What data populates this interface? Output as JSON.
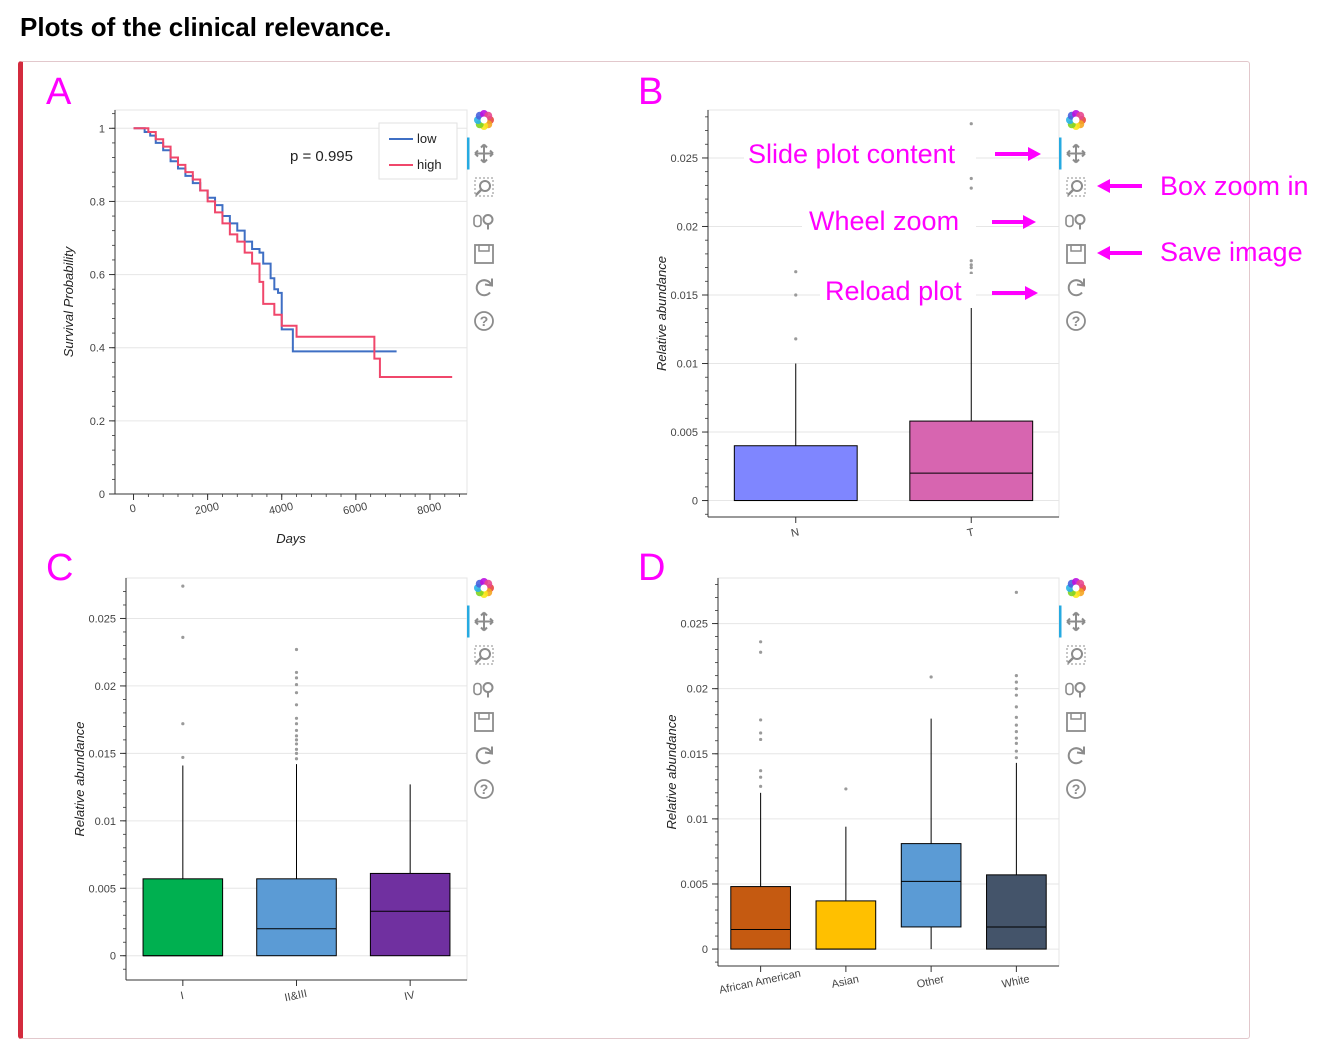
{
  "page": {
    "title": "Plots of the clinical relevance."
  },
  "toolbar": {
    "tools": [
      {
        "name": "bokeh-logo-icon",
        "active": false
      },
      {
        "name": "pan-icon",
        "active": true
      },
      {
        "name": "box-zoom-icon",
        "active": false
      },
      {
        "name": "wheel-zoom-icon",
        "active": false
      },
      {
        "name": "save-icon",
        "active": false
      },
      {
        "name": "reset-icon",
        "active": false
      },
      {
        "name": "help-icon",
        "active": false
      }
    ],
    "accent": "#26aae1"
  },
  "annotations": {
    "slide": "Slide plot content",
    "box_zoom": "Box zoom in",
    "wheel_zoom": "Wheel zoom",
    "save": "Save image",
    "reload": "Reload plot",
    "color": "#ff00ff"
  },
  "chart_data": [
    {
      "panel": "A",
      "type": "line",
      "xlabel": "Days",
      "ylabel": "Survival Probability",
      "xlim": [
        -500,
        9000
      ],
      "ylim": [
        0,
        1.05
      ],
      "xticks": [
        0,
        2000,
        4000,
        6000,
        8000
      ],
      "xtick_labels": [
        "0",
        "2000",
        "4000",
        "6000",
        "8000"
      ],
      "yticks": [
        0,
        0.2,
        0.4,
        0.6,
        0.8,
        1
      ],
      "ytick_labels": [
        "0",
        "0.2",
        "0.4",
        "0.6",
        "0.8",
        "1"
      ],
      "annotation": "p = 0.995",
      "legend": "top-right",
      "series": [
        {
          "name": "low",
          "color": "#3f6fc4",
          "points": [
            [
              0,
              1
            ],
            [
              150,
              1
            ],
            [
              300,
              0.99
            ],
            [
              450,
              0.98
            ],
            [
              600,
              0.96
            ],
            [
              800,
              0.94
            ],
            [
              1000,
              0.91
            ],
            [
              1200,
              0.89
            ],
            [
              1400,
              0.87
            ],
            [
              1600,
              0.85
            ],
            [
              1800,
              0.83
            ],
            [
              2000,
              0.81
            ],
            [
              2200,
              0.79
            ],
            [
              2400,
              0.76
            ],
            [
              2600,
              0.74
            ],
            [
              2800,
              0.72
            ],
            [
              3000,
              0.69
            ],
            [
              3200,
              0.67
            ],
            [
              3400,
              0.66
            ],
            [
              3500,
              0.63
            ],
            [
              3650,
              0.63
            ],
            [
              3700,
              0.59
            ],
            [
              3800,
              0.56
            ],
            [
              3900,
              0.55
            ],
            [
              4000,
              0.45
            ],
            [
              4300,
              0.45
            ],
            [
              4300,
              0.39
            ],
            [
              7100,
              0.39
            ]
          ]
        },
        {
          "name": "high",
          "color": "#f0476b",
          "points": [
            [
              0,
              1
            ],
            [
              200,
              1
            ],
            [
              400,
              0.99
            ],
            [
              600,
              0.97
            ],
            [
              800,
              0.95
            ],
            [
              1000,
              0.92
            ],
            [
              1200,
              0.9
            ],
            [
              1400,
              0.88
            ],
            [
              1600,
              0.86
            ],
            [
              1800,
              0.83
            ],
            [
              2000,
              0.8
            ],
            [
              2200,
              0.77
            ],
            [
              2400,
              0.74
            ],
            [
              2600,
              0.71
            ],
            [
              2800,
              0.69
            ],
            [
              3000,
              0.66
            ],
            [
              3200,
              0.63
            ],
            [
              3400,
              0.58
            ],
            [
              3500,
              0.52
            ],
            [
              3800,
              0.52
            ],
            [
              3800,
              0.49
            ],
            [
              3950,
              0.49
            ],
            [
              4000,
              0.46
            ],
            [
              4400,
              0.46
            ],
            [
              4400,
              0.43
            ],
            [
              6500,
              0.43
            ],
            [
              6500,
              0.37
            ],
            [
              6650,
              0.37
            ],
            [
              6650,
              0.32
            ],
            [
              8600,
              0.32
            ]
          ]
        }
      ]
    },
    {
      "panel": "B",
      "type": "box",
      "xlabel": "",
      "ylabel": "Relative abundance",
      "ylim": [
        -0.0012,
        0.0285
      ],
      "yticks": [
        0,
        0.005,
        0.01,
        0.015,
        0.02,
        0.025
      ],
      "ytick_labels": [
        "0",
        "0.005",
        "0.01",
        "0.015",
        "0.02",
        "0.025"
      ],
      "categories": [
        "N",
        "T"
      ],
      "boxes": [
        {
          "q1": 0,
          "median": 0,
          "q3": 0.004,
          "upper": 0.01,
          "color": "#7f86ff",
          "outliers": [
            0.0118,
            0.015,
            0.0167
          ]
        },
        {
          "q1": 0,
          "median": 0.002,
          "q3": 0.0058,
          "upper": 0.0145,
          "color": "#d765b0",
          "outliers": [
            0.015,
            0.0155,
            0.016,
            0.0163,
            0.0166,
            0.017,
            0.0172,
            0.0175,
            0.0228,
            0.0235,
            0.0275
          ]
        }
      ]
    },
    {
      "panel": "C",
      "type": "box",
      "xlabel": "",
      "ylabel": "Relative abundance",
      "ylim": [
        -0.0018,
        0.028
      ],
      "yticks": [
        0,
        0.005,
        0.01,
        0.015,
        0.02,
        0.025
      ],
      "ytick_labels": [
        "0",
        "0.005",
        "0.01",
        "0.015",
        "0.02",
        "0.025"
      ],
      "categories": [
        "I",
        "II&III",
        "IV"
      ],
      "boxes": [
        {
          "q1": 0,
          "median": 0,
          "q3": 0.0057,
          "upper": 0.0141,
          "color": "#00b050",
          "outliers": [
            0.0147,
            0.0172,
            0.0236,
            0.0274
          ]
        },
        {
          "q1": 0,
          "median": 0.002,
          "q3": 0.0057,
          "upper": 0.0142,
          "color": "#5b9bd5",
          "outliers": [
            0.0146,
            0.015,
            0.0153,
            0.0157,
            0.016,
            0.0163,
            0.0167,
            0.0172,
            0.0176,
            0.0186,
            0.0195,
            0.0201,
            0.0206,
            0.021,
            0.0227
          ]
        },
        {
          "q1": 0,
          "median": 0.0033,
          "q3": 0.0061,
          "upper": 0.0127,
          "color": "#7030a0",
          "outliers": []
        }
      ]
    },
    {
      "panel": "D",
      "type": "box",
      "xlabel": "",
      "ylabel": "Relative abundance",
      "ylim": [
        -0.0013,
        0.0285
      ],
      "yticks": [
        0,
        0.005,
        0.01,
        0.015,
        0.02,
        0.025
      ],
      "ytick_labels": [
        "0",
        "0.005",
        "0.01",
        "0.015",
        "0.02",
        "0.025"
      ],
      "categories": [
        "African American",
        "Asian",
        "Other",
        "White"
      ],
      "boxes": [
        {
          "q1": 0,
          "median": 0.0015,
          "q3": 0.0048,
          "upper": 0.012,
          "color": "#c55a11",
          "outliers": [
            0.0125,
            0.0132,
            0.0137,
            0.0161,
            0.0166,
            0.0176,
            0.0228,
            0.0236
          ]
        },
        {
          "q1": 0,
          "median": 0,
          "q3": 0.0037,
          "upper": 0.0094,
          "color": "#ffc000",
          "outliers": [
            0.0123
          ]
        },
        {
          "q1": 0.0017,
          "median": 0.0052,
          "q3": 0.0081,
          "upper": 0.0177,
          "color": "#5b9bd5",
          "outliers": [
            0.0209
          ]
        },
        {
          "q1": 0,
          "median": 0.0017,
          "q3": 0.0057,
          "upper": 0.0143,
          "color": "#44546a",
          "outliers": [
            0.0147,
            0.0152,
            0.0158,
            0.0162,
            0.0167,
            0.0172,
            0.0178,
            0.0186,
            0.0195,
            0.02,
            0.0205,
            0.021,
            0.0274
          ]
        }
      ]
    }
  ]
}
